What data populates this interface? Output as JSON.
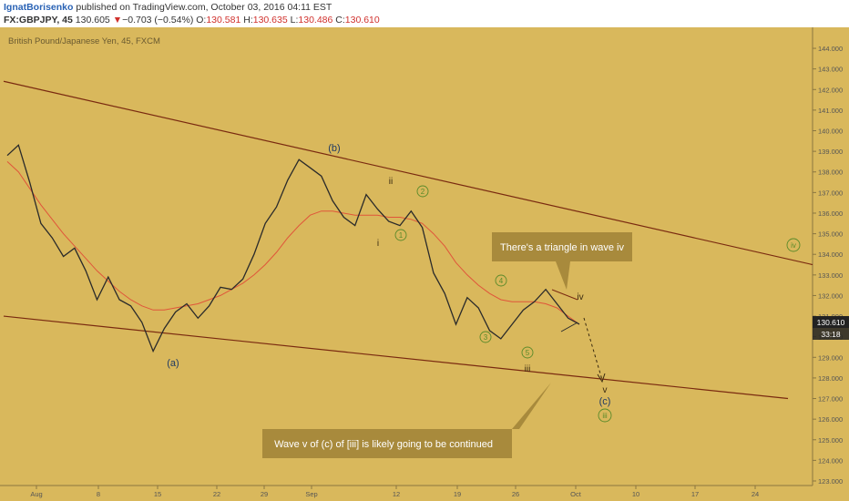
{
  "header": {
    "author": "IgnatBorisenko",
    "published": " published on TradingView.com, October 03, 2016 04:11 EST",
    "symbol": "FX:GBPJPY, 45",
    "last": "130.605",
    "arrow": "▼",
    "change": "−0.703 (−0.54%)",
    "o_label": "O:",
    "o_value": "130.581",
    "h_label": "H:",
    "h_value": "130.635",
    "l_label": "L:",
    "l_value": "130.486",
    "c_label": "C:",
    "c_value": "130.610"
  },
  "chart_title": "British Pound/Japanese Yen, 45, FXCM",
  "colors": {
    "background": "#d9b85c",
    "header_bg": "#ffffff",
    "candles": "#2a2a2a",
    "moving_average": "#e0553a",
    "trendline": "#7a2a10",
    "wave_blue": "#1f3a63",
    "wave_dark": "#3a2a10",
    "wave_green": "#5a8a2a",
    "callout_bg": "#a88a3c",
    "axis_text": "#555555",
    "price_tag": "#222222"
  },
  "price_axis": {
    "ticks": [
      "123.000",
      "124.000",
      "125.000",
      "126.000",
      "127.000",
      "128.000",
      "129.000",
      "130.000",
      "131.000",
      "132.000",
      "133.000",
      "134.000",
      "135.000",
      "136.000",
      "137.000",
      "138.000",
      "139.000",
      "140.000",
      "141.000",
      "142.000",
      "143.000",
      "144.000"
    ],
    "ylim": [
      123,
      144.4
    ],
    "current_price": "130.610",
    "countdown": "33:18"
  },
  "time_axis": {
    "labels": [
      "Aug",
      "8",
      "15",
      "22",
      "29",
      "Sep",
      "12",
      "19",
      "26",
      "Oct",
      "10",
      "17",
      "24"
    ]
  },
  "chart_data": {
    "type": "line",
    "title": "British Pound/Japanese Yen, 45, FXCM",
    "x_axis_labels": [
      "Aug",
      "8",
      "15",
      "22",
      "29",
      "Sep",
      "12",
      "19",
      "26",
      "Oct",
      "10",
      "17",
      "24"
    ],
    "ylim": [
      123,
      144.4
    ],
    "series": [
      {
        "values": [
          138.8,
          139.3,
          137.5,
          135.5,
          134.8,
          133.9,
          134.3,
          133.2,
          131.8,
          132.9,
          131.8,
          131.5,
          130.7,
          129.3,
          130.4,
          131.2,
          131.6,
          130.9,
          131.5,
          132.4,
          132.3,
          132.8,
          134.0,
          135.5,
          136.3,
          137.6,
          138.6,
          138.2,
          137.8,
          136.6,
          135.8,
          135.4,
          136.9,
          136.2,
          135.6,
          135.4,
          136.1,
          135.3,
          133.1,
          132.1,
          130.6,
          131.9,
          131.4,
          130.3,
          129.9,
          130.6,
          131.3,
          131.7,
          132.3,
          131.6,
          130.9,
          130.61
        ]
      },
      {
        "values": [
          138.5,
          138.0,
          137.2,
          136.4,
          135.7,
          135.0,
          134.4,
          133.8,
          133.2,
          132.7,
          132.2,
          131.8,
          131.5,
          131.3,
          131.3,
          131.4,
          131.5,
          131.6,
          131.8,
          132.0,
          132.3,
          132.6,
          133.0,
          133.5,
          134.1,
          134.8,
          135.4,
          135.9,
          136.1,
          136.1,
          136.0,
          135.9,
          135.9,
          135.9,
          135.8,
          135.8,
          135.7,
          135.5,
          135.0,
          134.4,
          133.6,
          133.0,
          132.5,
          132.1,
          131.8,
          131.7,
          131.7,
          131.7,
          131.6,
          131.4,
          131.0,
          130.6
        ]
      }
    ],
    "trendlines": [
      {
        "from": [
          "Jul 28",
          142.4
        ],
        "to": [
          "Oct 27",
          133.5
        ]
      },
      {
        "from": [
          "Jul 28",
          131.0
        ],
        "to": [
          "Oct 25",
          127.0
        ]
      }
    ],
    "projection": [
      [
        130.9,
        128.0
      ]
    ],
    "wave_labels": {
      "blue": [
        "(a)",
        "(b)",
        "(c)"
      ],
      "dark": [
        "i",
        "ii",
        "iii",
        "iv",
        "v"
      ],
      "green": [
        "1",
        "2",
        "3",
        "4",
        "5",
        "iii",
        "iv"
      ]
    },
    "annotations": [
      "There's a triangle in wave iv",
      "Wave v of (c) of [iii] is likely going to be continued"
    ]
  }
}
